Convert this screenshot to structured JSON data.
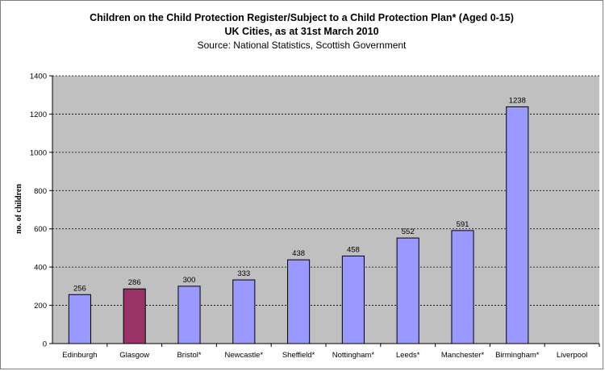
{
  "chart_data": {
    "type": "bar",
    "title": "Children on the Child Protection Register/Subject to a Child Protection Plan* (Aged 0-15)",
    "subtitle": "UK Cities, as at 31st March 2010",
    "source": "Source: National Statistics, Scottish Government",
    "ylabel": "no. of children",
    "xlabel": "",
    "ylim": [
      0,
      1400
    ],
    "yticks": [
      0,
      200,
      400,
      600,
      800,
      1000,
      1200,
      1400
    ],
    "grid": true,
    "legend": "none",
    "categories": [
      "Edinburgh",
      "Glasgow",
      "Bristol*",
      "Newcastle*",
      "Sheffield*",
      "Nottingham*",
      "Leeds*",
      "Manchester*",
      "Birmingham*",
      "Liverpool"
    ],
    "values": [
      256,
      286,
      300,
      333,
      438,
      458,
      552,
      591,
      1238,
      null
    ],
    "data_labels": [
      "256",
      "286",
      "300",
      "333",
      "438",
      "458",
      "552",
      "591",
      "1238",
      ""
    ],
    "colors": {
      "plot_background": "#c0c0c0",
      "bar_default": "#9999ff",
      "bar_highlight": "#993366",
      "highlight_category": "Glasgow"
    }
  }
}
